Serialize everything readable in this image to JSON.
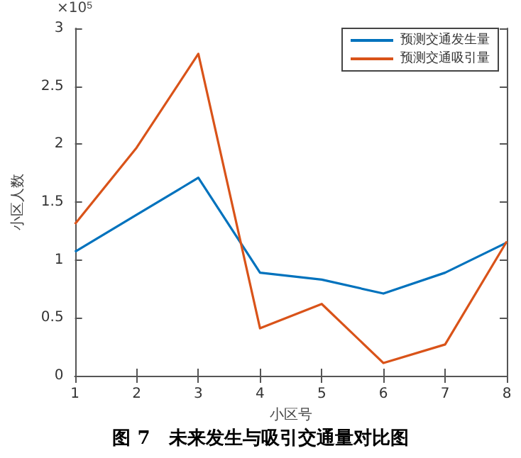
{
  "chart_data": {
    "type": "line",
    "title": "图 7　未来发生与吸引交通量对比图",
    "xlabel": "小区号",
    "ylabel": "小区人数",
    "annotations": [
      "×10$^{5}$"
    ],
    "x": [
      1,
      2,
      3,
      4,
      5,
      6,
      7,
      8
    ],
    "series": [
      {
        "name": "预测交通发生量",
        "color": "#0072bd",
        "values": [
          1.07,
          1.39,
          1.71,
          0.89,
          0.83,
          0.71,
          0.89,
          1.15
        ]
      },
      {
        "name": "预测交通吸引量",
        "color": "#d95319",
        "values": [
          1.31,
          1.97,
          2.78,
          0.41,
          0.62,
          0.11,
          0.27,
          1.16
        ]
      }
    ],
    "xlim": [
      1,
      8
    ],
    "xticks": [
      1,
      2,
      3,
      4,
      5,
      6,
      7,
      8
    ],
    "ylim": [
      0,
      3
    ],
    "yticks": [
      0,
      0.5,
      1,
      1.5,
      2,
      2.5,
      3
    ],
    "grid": false,
    "legend": "top right",
    "marker": "none",
    "line_style": "solid"
  }
}
